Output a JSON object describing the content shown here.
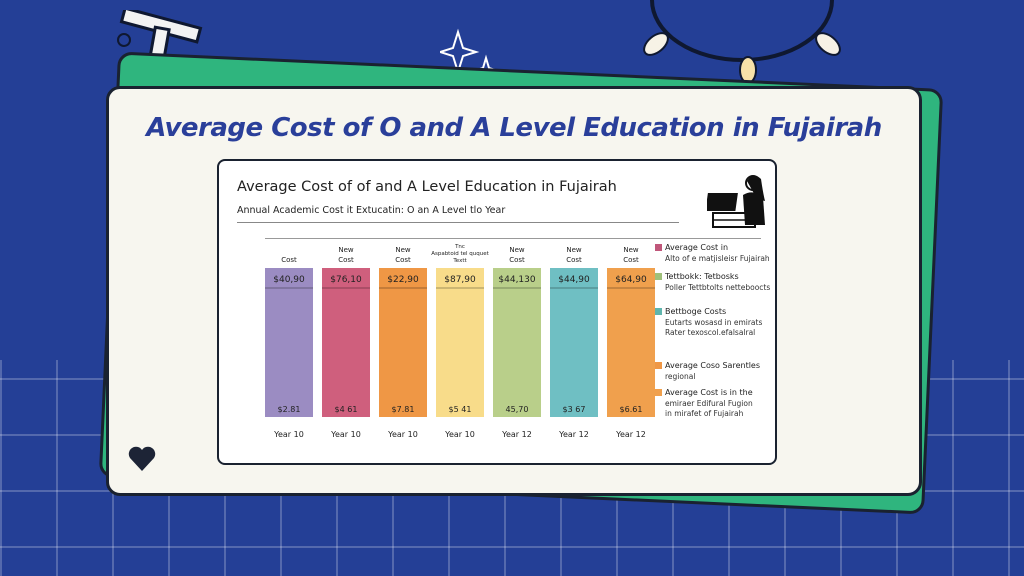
{
  "headline": "Average Cost of O and A Level Education in Fujairah",
  "chart_data": {
    "type": "bar",
    "title": "Average Cost of of and A Level Education in Fujairah",
    "subtitle": "Annual Academic Cost it Extucatin: O an A Level tlo Year",
    "categories": [
      "Year 10",
      "Year 10",
      "Year 10",
      "Year 10",
      "Year 12",
      "Year 12",
      "Year 12"
    ],
    "headers": [
      [
        "Cost"
      ],
      [
        "New",
        "Cost"
      ],
      [
        "New",
        "Cost"
      ],
      [
        "Tnc",
        "Aspabtoid tel ququet",
        "Textt"
      ],
      [
        "New",
        "Cost"
      ],
      [
        "New",
        "Cost"
      ],
      [
        "New",
        "Cost"
      ]
    ],
    "top_labels": [
      "$40,90",
      "$76,10",
      "$22,90",
      "$87,90",
      "$44,130",
      "$44,90",
      "$64,90"
    ],
    "bottom_labels": [
      "$2.81",
      "$4 61",
      "$7.81",
      "$5 41",
      "45,70",
      "$3 67",
      "$6.61"
    ],
    "colors": [
      "#9b8cc2",
      "#cf5f7d",
      "#ef9745",
      "#f8dc8a",
      "#b9cf8a",
      "#6fbfc3",
      "#f0a04d"
    ],
    "legend": [
      {
        "color": "#c0577a",
        "lines": [
          "Average Cost in",
          "Alto of e matjisleisr Fujairah"
        ]
      },
      {
        "color": "#9fc07a",
        "lines": [
          "Tettbokk: Tetbosks",
          "Poller Tettbtolts netteboocts"
        ]
      },
      {
        "color": "#5fb5ad",
        "lines": [
          "Bettboge Costs",
          "Eutarts wosasd in emirats",
          "Rater texoscol.efalsalral"
        ]
      },
      {
        "color": "#ef9745",
        "lines": [
          "Average Coso Sarentles",
          "regional"
        ]
      },
      {
        "color": "#f0a04d",
        "lines": [
          "Average Cost is in the",
          "emiraer Edifural Fugion",
          "in mirafet of Fujairah"
        ]
      }
    ]
  }
}
